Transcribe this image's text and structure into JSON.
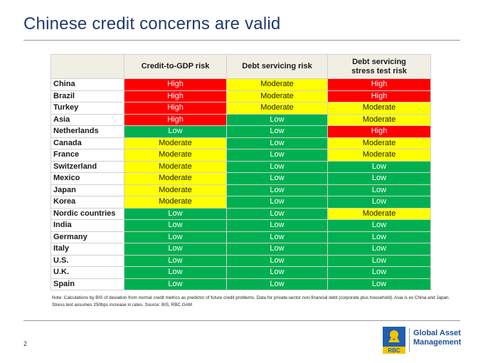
{
  "title": "Chinese credit concerns are valid",
  "table": {
    "columns": [
      "Credit-to-GDP risk",
      "Debt servicing risk",
      "Debt servicing stress test risk"
    ],
    "rows": [
      {
        "country": "China",
        "values": [
          "High",
          "Moderate",
          "High"
        ]
      },
      {
        "country": "Brazil",
        "values": [
          "High",
          "Moderate",
          "High"
        ]
      },
      {
        "country": "Turkey",
        "values": [
          "High",
          "Moderate",
          "Moderate"
        ]
      },
      {
        "country": "Asia",
        "values": [
          "High",
          "Low",
          "Moderate"
        ]
      },
      {
        "country": "Netherlands",
        "values": [
          "Low",
          "Low",
          "High"
        ]
      },
      {
        "country": "Canada",
        "values": [
          "Moderate",
          "Low",
          "Moderate"
        ]
      },
      {
        "country": "France",
        "values": [
          "Moderate",
          "Low",
          "Moderate"
        ]
      },
      {
        "country": "Switzerland",
        "values": [
          "Moderate",
          "Low",
          "Low"
        ]
      },
      {
        "country": "Mexico",
        "values": [
          "Moderate",
          "Low",
          "Low"
        ]
      },
      {
        "country": "Japan",
        "values": [
          "Moderate",
          "Low",
          "Low"
        ]
      },
      {
        "country": "Korea",
        "values": [
          "Moderate",
          "Low",
          "Low"
        ]
      },
      {
        "country": "Nordic countries",
        "values": [
          "Low",
          "Low",
          "Moderate"
        ]
      },
      {
        "country": "India",
        "values": [
          "Low",
          "Low",
          "Low"
        ]
      },
      {
        "country": "Germany",
        "values": [
          "Low",
          "Low",
          "Low"
        ]
      },
      {
        "country": "Italy",
        "values": [
          "Low",
          "Low",
          "Low"
        ]
      },
      {
        "country": "U.S.",
        "values": [
          "Low",
          "Low",
          "Low"
        ]
      },
      {
        "country": "U.K.",
        "values": [
          "Low",
          "Low",
          "Low"
        ]
      },
      {
        "country": "Spain",
        "values": [
          "Low",
          "Low",
          "Low"
        ]
      }
    ]
  },
  "colors": {
    "High": "#ff0000",
    "Moderate": "#ffff00",
    "Low": "#00b050",
    "title": "#1f3a6e"
  },
  "note": "Note: Calculations by BIS of deviation from normal credit metrics as predictor of future credit problems. Data for private-sector non-financial debt (corporate plus household). Asia is ex China and Japan. Stress test assumes 250bps increase in rates. Source: BIS, RBC GAM",
  "page_number": "2",
  "logo": {
    "mark_text": "RBC",
    "line1": "Global Asset",
    "line2": "Management"
  }
}
